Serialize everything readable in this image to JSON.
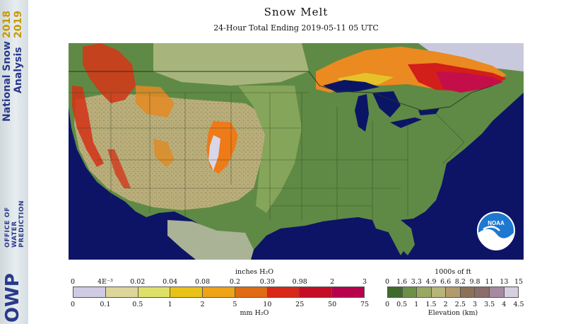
{
  "banner": {
    "line1": "National Snow",
    "year1": "2018",
    "line2": "Analysis",
    "year2": "2019",
    "office_big": "OWP",
    "office_small1": "OFFICE OF",
    "office_small2": "WATER",
    "office_small3": "PREDICTION"
  },
  "header": {
    "title": "Snow Melt",
    "subtitle": "24-Hour Total Ending 2019-05-11 05 UTC"
  },
  "map": {
    "logo_text": "NOAA",
    "ocean_color": "#0d1466",
    "land_color": "#4e7a3a",
    "lake_color": "#0b1566"
  },
  "snow_legend": {
    "top_label": "inches H₂O",
    "bottom_label": "mm H₂O",
    "top_ticks": [
      "0",
      "4E⁻³",
      "0.02",
      "0.04",
      "0.08",
      "0.2",
      "0.39",
      "0.98",
      "2",
      "3"
    ],
    "bottom_ticks": [
      "0",
      "0.1",
      "0.5",
      "1",
      "2",
      "5",
      "10",
      "25",
      "50",
      "75"
    ],
    "colors": [
      "#cfcbe2",
      "#ddd59a",
      "#dfe06a",
      "#e8c218",
      "#eea318",
      "#e06b14",
      "#d7281a",
      "#c40e26",
      "#b8004e"
    ]
  },
  "elev_legend": {
    "top_label": "1000s of ft",
    "bottom_label": "Elevation (km)",
    "top_ticks": [
      "0",
      "1.6",
      "3.3",
      "4.9",
      "6.6",
      "8.2",
      "9.8",
      "11",
      "13",
      "15"
    ],
    "bottom_ticks": [
      "0",
      "0.5",
      "1",
      "1.5",
      "2",
      "2.5",
      "3",
      "3.5",
      "4",
      "4.5"
    ],
    "colors": [
      "#3f6a2c",
      "#6e8f48",
      "#9aa962",
      "#b6b57a",
      "#b19a6d",
      "#8c7158",
      "#8a6c68",
      "#a68aa0",
      "#d7cfe1"
    ]
  }
}
